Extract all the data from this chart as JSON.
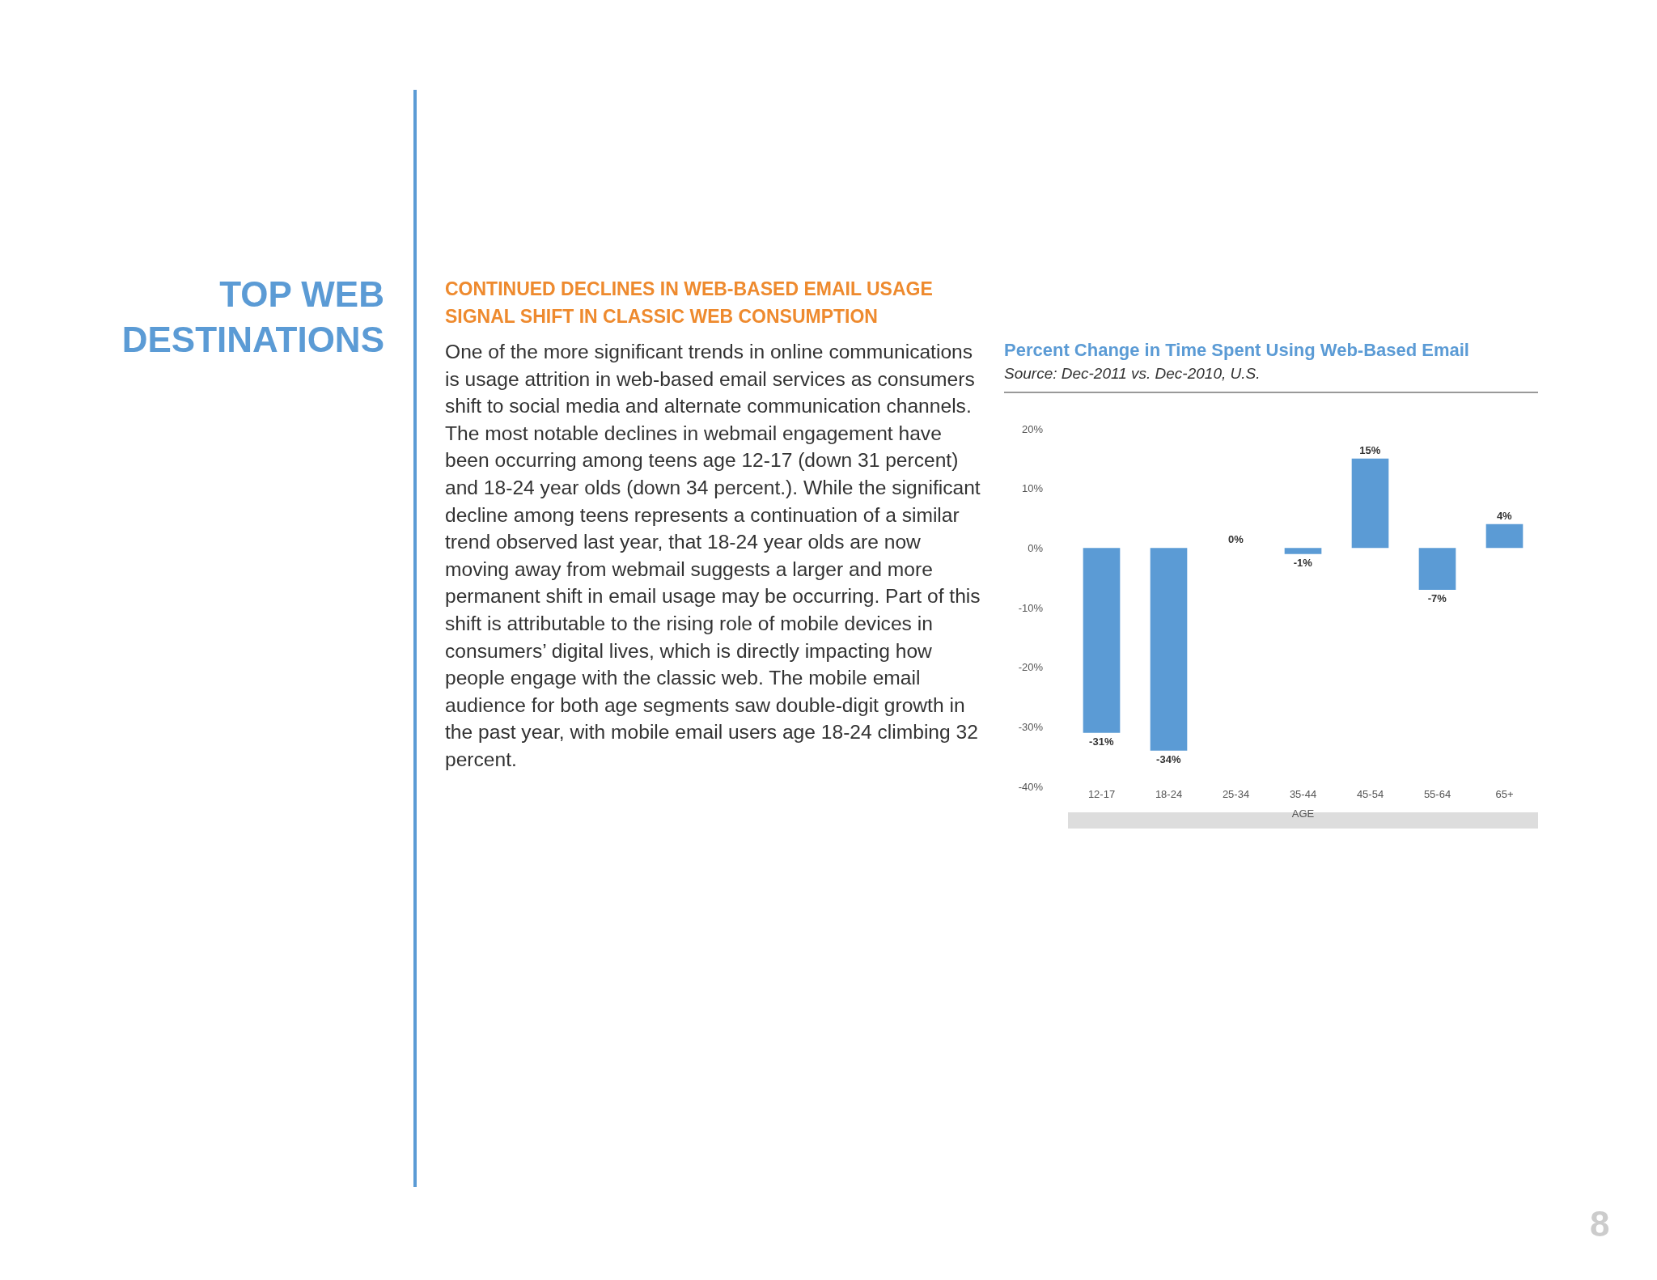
{
  "chart_data": {
    "type": "bar",
    "title": "Percent Change in Time Spent Using Web-Based Email",
    "subtitle": "Source: Dec-2011 vs. Dec-2010, U.S.",
    "xlabel": "AGE",
    "categories": [
      "12-17",
      "18-24",
      "25-34",
      "35-44",
      "45-54",
      "55-64",
      "65+"
    ],
    "values": [
      -31,
      -34,
      0,
      -1,
      15,
      -7,
      4
    ],
    "value_labels": [
      "-31%",
      "-34%",
      "0%",
      "-1%",
      "15%",
      "-7%",
      "4%"
    ],
    "color": "#5b9bd5",
    "ylim": [
      -40,
      20
    ],
    "yticks": [
      {
        "value": -40,
        "label": "-40%"
      },
      {
        "value": -30,
        "label": "-30%"
      },
      {
        "value": -20,
        "label": "-20%"
      },
      {
        "value": -10,
        "label": "-10%"
      },
      {
        "value": 0,
        "label": "0%"
      },
      {
        "value": 10,
        "label": "10%"
      },
      {
        "value": 20,
        "label": "20%"
      }
    ],
    "annotations": [
      "TOP WEB\nDESTINATIONS",
      "CONTINUED DECLINES IN WEB-BASED EMAIL USAGE\nSIGNAL SHIFT IN CLASSIC WEB CONSUMPTION",
      "One of the more significant trends in online communications is usage attrition in web-based email services as consumers shift to social media and alternate communication channels. The most notable declines in webmail engagement have been occurring among teens age 12-17 (down 31 percent) and 18-24 year olds (down 34 percent.). While the significant decline among teens represents a continuation of a similar trend observed last year, that 18-24 year olds are now moving away from webmail suggests a larger and more permanent shift in email usage may be occurring. Part of this shift is attributable to the rising role of mobile devices in consumers’ digital lives, which is directly impacting how people engage with the classic web. The mobile email audience for both age segments saw double-digit growth in the past year, with mobile email users age 18-24 climbing 32 percent.",
      "8"
    ]
  }
}
